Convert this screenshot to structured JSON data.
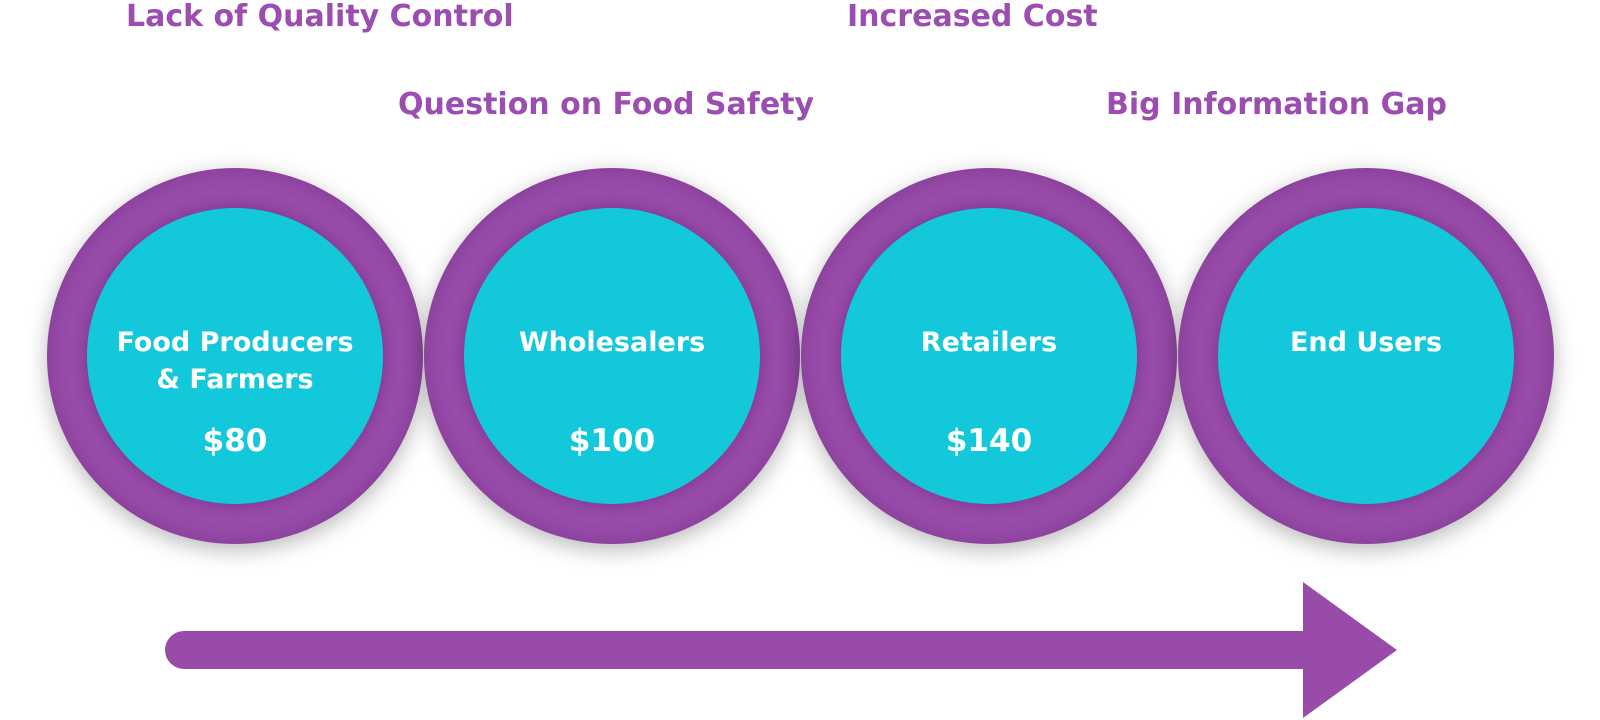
{
  "issues": {
    "quality": "Lack of Quality Control",
    "cost": "Increased Cost",
    "safety": "Question on Food Safety",
    "gap": "Big Information Gap"
  },
  "stages": [
    {
      "label": "Food Producers\n& Farmers",
      "price": "$80"
    },
    {
      "label": "Wholesalers",
      "price": "$100"
    },
    {
      "label": "Retailers",
      "price": "$140"
    },
    {
      "label": "End Users",
      "price": ""
    }
  ],
  "colors": {
    "purple": "#984ba9",
    "cyan": "#13c8db",
    "text_purple": "#9b4db0"
  }
}
